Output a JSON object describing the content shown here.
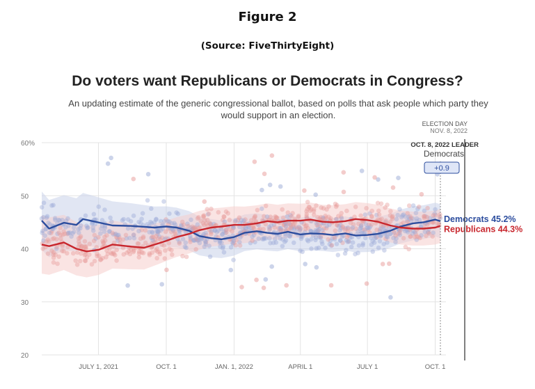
{
  "figure": {
    "title": "Figure 2",
    "source": "(Source: FiveThirtyEight)"
  },
  "chart_data": {
    "type": "line",
    "title": "Do voters want Republicans or Democrats in Congress?",
    "subtitle": "An updating estimate of the generic congressional ballot, based on polls that ask people which party they would support in an election.",
    "xlabel": "",
    "ylabel": "",
    "x_range": [
      "2021-04-15",
      "2022-10-08"
    ],
    "y_range": [
      20,
      60
    ],
    "y_ticks": [
      {
        "value": 60,
        "label": "60%"
      },
      {
        "value": 50,
        "label": "50"
      },
      {
        "value": 40,
        "label": "40"
      },
      {
        "value": 30,
        "label": "30"
      },
      {
        "value": 20,
        "label": "20"
      }
    ],
    "x_ticks": [
      {
        "date": "2021-07-01",
        "label": "JULY 1, 2021"
      },
      {
        "date": "2021-10-01",
        "label": "OCT. 1"
      },
      {
        "date": "2022-01-01",
        "label": "JAN. 1, 2022"
      },
      {
        "date": "2022-04-01",
        "label": "APRIL 1"
      },
      {
        "date": "2022-07-01",
        "label": "JULY 1"
      },
      {
        "date": "2022-10-01",
        "label": "OCT. 1"
      }
    ],
    "grid": true,
    "annotations": {
      "election_day_line1": "ELECTION DAY",
      "election_day_line2": "NOV. 8, 2022",
      "leader_label": "OCT. 8, 2022 LEADER",
      "leader_party": "Democrats",
      "leader_margin": "+0.9"
    },
    "series": [
      {
        "name": "Democrats",
        "end_label": "Democrats 45.2%",
        "color": "#2c4d9e",
        "band_color": "#c9d2ea",
        "dot_color": "#9aaad6",
        "x": [
          "2021-04-15",
          "2021-04-25",
          "2021-05-15",
          "2021-06-01",
          "2021-06-10",
          "2021-07-20",
          "2021-08-15",
          "2021-09-15",
          "2021-10-01",
          "2021-10-15",
          "2021-11-01",
          "2021-11-15",
          "2021-12-01",
          "2021-12-15",
          "2022-01-01",
          "2022-01-15",
          "2022-02-01",
          "2022-02-15",
          "2022-03-01",
          "2022-03-15",
          "2022-04-01",
          "2022-04-15",
          "2022-05-01",
          "2022-05-15",
          "2022-06-01",
          "2022-06-15",
          "2022-07-01",
          "2022-07-15",
          "2022-08-01",
          "2022-08-15",
          "2022-09-01",
          "2022-09-15",
          "2022-10-01",
          "2022-10-08"
        ],
        "values": [
          45.3,
          43.8,
          44.9,
          44.5,
          45.6,
          44.4,
          44.3,
          44.0,
          44.2,
          44.0,
          43.4,
          42.4,
          42.0,
          41.8,
          42.2,
          43.0,
          43.3,
          43.0,
          42.8,
          43.2,
          42.7,
          42.9,
          42.8,
          42.6,
          42.9,
          42.5,
          42.6,
          42.8,
          43.4,
          44.2,
          44.8,
          45.0,
          45.5,
          45.2
        ]
      },
      {
        "name": "Republicans",
        "end_label": "Republicans 44.3%",
        "color": "#c8262d",
        "band_color": "#f6cdcc",
        "dot_color": "#e79a98",
        "x": [
          "2021-04-15",
          "2021-04-25",
          "2021-05-15",
          "2021-06-01",
          "2021-06-15",
          "2021-07-01",
          "2021-07-20",
          "2021-08-15",
          "2021-09-01",
          "2021-09-20",
          "2021-10-01",
          "2021-10-15",
          "2021-11-01",
          "2021-11-15",
          "2021-12-01",
          "2021-12-15",
          "2022-01-01",
          "2022-01-15",
          "2022-02-01",
          "2022-02-15",
          "2022-03-01",
          "2022-03-15",
          "2022-04-01",
          "2022-04-15",
          "2022-05-01",
          "2022-05-15",
          "2022-06-01",
          "2022-06-15",
          "2022-07-01",
          "2022-07-15",
          "2022-08-01",
          "2022-08-15",
          "2022-09-01",
          "2022-09-15",
          "2022-10-01",
          "2022-10-08"
        ],
        "values": [
          40.8,
          40.5,
          41.2,
          40.0,
          39.5,
          39.8,
          40.8,
          40.4,
          40.2,
          41.0,
          41.5,
          42.2,
          42.8,
          43.5,
          44.0,
          44.2,
          44.5,
          44.5,
          44.8,
          45.2,
          45.0,
          45.3,
          45.3,
          45.5,
          45.1,
          45.0,
          45.2,
          45.6,
          45.4,
          45.1,
          44.4,
          44.0,
          43.8,
          43.8,
          44.0,
          44.3
        ]
      }
    ],
    "band_half_width": [
      {
        "date": "2021-04-15",
        "value": 5.5
      },
      {
        "date": "2021-10-01",
        "value": 3.8
      },
      {
        "date": "2022-04-01",
        "value": 3.2
      },
      {
        "date": "2022-10-08",
        "value": 3.2
      }
    ]
  }
}
